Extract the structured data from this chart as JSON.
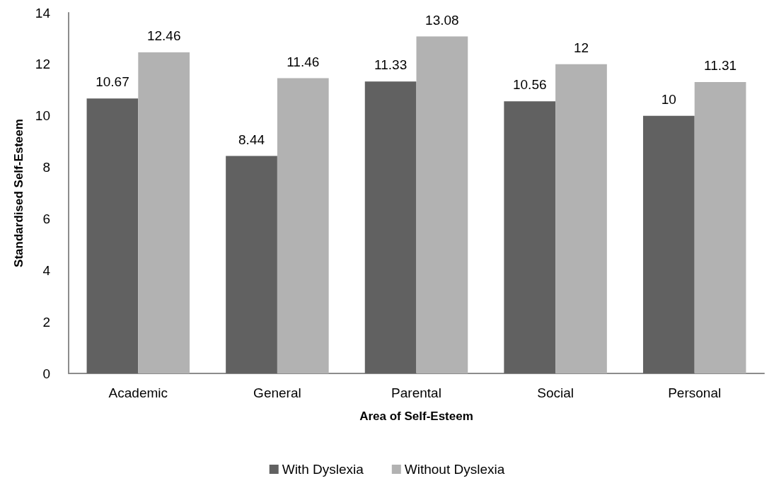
{
  "chart_data": {
    "type": "bar",
    "xlabel": "Area of Self-Esteem",
    "ylabel": "Standardised Self-Esteem",
    "categories": [
      "Academic",
      "General",
      "Parental",
      "Social",
      "Personal"
    ],
    "series": [
      {
        "name": "With Dyslexia",
        "color": "#616161",
        "values": [
          10.67,
          8.44,
          11.33,
          10.56,
          10
        ]
      },
      {
        "name": "Without Dyslexia",
        "color": "#b2b2b2",
        "values": [
          12.46,
          11.46,
          13.08,
          12,
          11.31
        ]
      }
    ],
    "ylim": [
      0,
      14
    ],
    "yticks": [
      0,
      2,
      4,
      6,
      8,
      10,
      12,
      14
    ],
    "grid": false,
    "legend": "bottom",
    "data_labels": true
  }
}
